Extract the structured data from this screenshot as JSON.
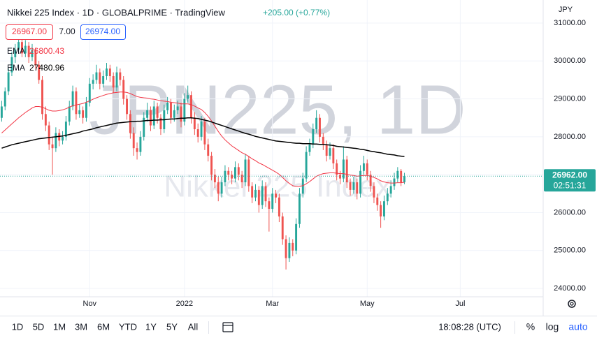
{
  "header": {
    "title": "Nikkei 225 Index · 1D · GLOBALPRIME · TradingView",
    "change": "+205.00 (+0.77%)",
    "bid": "26967.00",
    "spread": "7.00",
    "ask": "26974.00"
  },
  "watermark": {
    "symbol": "JPN225, 1D",
    "name": "Nikkei 225 Index"
  },
  "chart_data": {
    "type": "candlestick",
    "currency": "JPY",
    "up_color": "#26a69a",
    "down_color": "#ef5350",
    "ylim": [
      23780,
      31608
    ],
    "xlim": [
      -0.5,
      160
    ],
    "yticks": [
      {
        "value": 24000,
        "label": "24000.00"
      },
      {
        "value": 25000,
        "label": "25000.00"
      },
      {
        "value": 26000,
        "label": "26000.00"
      },
      {
        "value": 27000,
        "label": "27000.00"
      },
      {
        "value": 28000,
        "label": "28000.00"
      },
      {
        "value": 29000,
        "label": "29000.00"
      },
      {
        "value": 30000,
        "label": "30000.00"
      },
      {
        "value": 31000,
        "label": "31000.00"
      }
    ],
    "xticks": [
      {
        "value": 26,
        "label": "Nov"
      },
      {
        "value": 54,
        "label": "2022"
      },
      {
        "value": 80,
        "label": "Mar"
      },
      {
        "value": 108,
        "label": "May"
      },
      {
        "value": 135.5,
        "label": "Jul"
      }
    ],
    "last_price": {
      "value": 26962,
      "label": "26962.00"
    },
    "countdown": "02:51:31",
    "ohlc": [
      [
        28500,
        28950,
        28400,
        28800
      ],
      [
        28800,
        29300,
        28700,
        29200
      ],
      [
        29200,
        29800,
        29100,
        29700
      ],
      [
        29700,
        30250,
        29600,
        30100
      ],
      [
        30100,
        30450,
        29950,
        30300
      ],
      [
        30300,
        30700,
        30200,
        30500
      ],
      [
        30500,
        30650,
        30100,
        30200
      ],
      [
        30200,
        30550,
        30100,
        30400
      ],
      [
        30400,
        30500,
        29950,
        30100
      ],
      [
        30100,
        30450,
        30000,
        30300
      ],
      [
        30300,
        30350,
        29800,
        29900
      ],
      [
        29900,
        30000,
        29400,
        29500
      ],
      [
        29500,
        29600,
        28450,
        28600
      ],
      [
        28600,
        28800,
        28150,
        28300
      ],
      [
        28300,
        28400,
        27650,
        27800
      ],
      [
        27800,
        28000,
        27000,
        27700
      ],
      [
        27700,
        28250,
        27600,
        28100
      ],
      [
        28100,
        28200,
        27750,
        27900
      ],
      [
        27900,
        28150,
        27800,
        28000
      ],
      [
        28000,
        28550,
        27900,
        28400
      ],
      [
        28400,
        28950,
        28300,
        28800
      ],
      [
        28800,
        29350,
        28700,
        29200
      ],
      [
        29200,
        29300,
        28450,
        28600
      ],
      [
        28600,
        28850,
        28500,
        28700
      ],
      [
        28700,
        28800,
        28350,
        28500
      ],
      [
        28500,
        29050,
        28400,
        28900
      ],
      [
        28900,
        29550,
        28800,
        29400
      ],
      [
        29400,
        29650,
        29250,
        29500
      ],
      [
        29500,
        29900,
        29400,
        29700
      ],
      [
        29700,
        29800,
        29250,
        29400
      ],
      [
        29400,
        29750,
        29300,
        29600
      ],
      [
        29600,
        29950,
        29500,
        29800
      ],
      [
        29800,
        29900,
        29450,
        29600
      ],
      [
        29600,
        29700,
        29150,
        29300
      ],
      [
        29300,
        29850,
        29200,
        29700
      ],
      [
        29700,
        29800,
        29350,
        29500
      ],
      [
        29500,
        29600,
        28850,
        29000
      ],
      [
        29000,
        29100,
        28450,
        28600
      ],
      [
        28600,
        28700,
        27950,
        28100
      ],
      [
        28100,
        28250,
        27500,
        27700
      ],
      [
        27700,
        27850,
        27400,
        27600
      ],
      [
        27600,
        28150,
        27500,
        28000
      ],
      [
        28000,
        28650,
        27900,
        28500
      ],
      [
        28500,
        28900,
        28400,
        28700
      ],
      [
        28700,
        28800,
        28150,
        28300
      ],
      [
        28300,
        28950,
        28200,
        28800
      ],
      [
        28800,
        28900,
        28350,
        28500
      ],
      [
        28500,
        28600,
        28050,
        28200
      ],
      [
        28200,
        28850,
        28100,
        28700
      ],
      [
        28700,
        29050,
        28600,
        28900
      ],
      [
        28900,
        29000,
        28350,
        28500
      ],
      [
        28500,
        28850,
        28400,
        28700
      ],
      [
        28700,
        28950,
        28600,
        28800
      ],
      [
        28800,
        28900,
        28250,
        28400
      ],
      [
        28400,
        29150,
        28300,
        29000
      ],
      [
        29000,
        29350,
        28900,
        29100
      ],
      [
        29100,
        29200,
        28350,
        28500
      ],
      [
        28500,
        28650,
        28050,
        28200
      ],
      [
        28200,
        28350,
        27850,
        28000
      ],
      [
        28000,
        28550,
        27900,
        28400
      ],
      [
        28400,
        28500,
        27650,
        27800
      ],
      [
        27800,
        27950,
        27350,
        27500
      ],
      [
        27500,
        27600,
        26850,
        27000
      ],
      [
        27000,
        27150,
        26650,
        26800
      ],
      [
        26800,
        26950,
        26300,
        26500
      ],
      [
        26500,
        26950,
        26400,
        26800
      ],
      [
        26800,
        27250,
        26700,
        27100
      ],
      [
        27100,
        27200,
        26850,
        27000
      ],
      [
        27000,
        27100,
        26750,
        26900
      ],
      [
        26900,
        27350,
        26800,
        27200
      ],
      [
        27200,
        27300,
        26850,
        27000
      ],
      [
        27000,
        27100,
        26650,
        26800
      ],
      [
        26800,
        27550,
        26700,
        27400
      ],
      [
        27400,
        27500,
        26550,
        26700
      ],
      [
        26700,
        26800,
        26250,
        26400
      ],
      [
        26400,
        26750,
        26300,
        26600
      ],
      [
        26600,
        26700,
        26000,
        26200
      ],
      [
        26200,
        26850,
        26100,
        26700
      ],
      [
        26700,
        26800,
        26150,
        26300
      ],
      [
        26300,
        26400,
        25500,
        26100
      ],
      [
        26100,
        26650,
        26000,
        26500
      ],
      [
        26500,
        26600,
        26250,
        26400
      ],
      [
        26400,
        26500,
        25750,
        25900
      ],
      [
        25900,
        26000,
        25150,
        25300
      ],
      [
        25300,
        25400,
        24500,
        24800
      ],
      [
        24800,
        25350,
        24700,
        25200
      ],
      [
        25200,
        25300,
        24850,
        25000
      ],
      [
        25000,
        25850,
        24900,
        25700
      ],
      [
        25700,
        26650,
        25600,
        26500
      ],
      [
        26500,
        27050,
        26400,
        26900
      ],
      [
        26900,
        27750,
        26800,
        27600
      ],
      [
        27600,
        27950,
        27500,
        27800
      ],
      [
        27800,
        28350,
        27700,
        28200
      ],
      [
        28200,
        28700,
        28100,
        28500
      ],
      [
        28500,
        28600,
        27850,
        28000
      ],
      [
        28000,
        28100,
        27650,
        27800
      ],
      [
        27800,
        27900,
        27350,
        27500
      ],
      [
        27500,
        27850,
        27400,
        27700
      ],
      [
        27700,
        27800,
        27150,
        27300
      ],
      [
        27300,
        27400,
        26850,
        27000
      ],
      [
        27000,
        27100,
        26750,
        26900
      ],
      [
        26900,
        27750,
        26800,
        27400
      ],
      [
        27400,
        27500,
        26650,
        26800
      ],
      [
        26800,
        26900,
        26450,
        26600
      ],
      [
        26600,
        26950,
        26500,
        26800
      ],
      [
        26800,
        26900,
        26350,
        26500
      ],
      [
        26500,
        27250,
        26400,
        27100
      ],
      [
        27100,
        27500,
        27000,
        27300
      ],
      [
        27300,
        27400,
        26850,
        27000
      ],
      [
        27000,
        27100,
        26550,
        26700
      ],
      [
        26700,
        26800,
        26250,
        26400
      ],
      [
        26400,
        26500,
        26050,
        26200
      ],
      [
        26200,
        26300,
        25600,
        25900
      ],
      [
        25900,
        26450,
        25800,
        26300
      ],
      [
        26300,
        26650,
        26200,
        26500
      ],
      [
        26500,
        26850,
        26400,
        26700
      ],
      [
        26700,
        27050,
        26600,
        26900
      ],
      [
        26900,
        27200,
        26800,
        27100
      ],
      [
        27100,
        27150,
        26700,
        26800
      ],
      [
        26800,
        27050,
        26750,
        26962
      ]
    ],
    "series": [
      {
        "name": "EMA",
        "color": "#f23645",
        "last": "26800.43",
        "values": [
          28100,
          28180,
          28260,
          28340,
          28420,
          28500,
          28570,
          28640,
          28700,
          28760,
          28800,
          28800,
          28780,
          28740,
          28700,
          28680,
          28680,
          28690,
          28710,
          28740,
          28780,
          28820,
          28840,
          28860,
          28880,
          28910,
          28950,
          28990,
          29030,
          29060,
          29090,
          29120,
          29140,
          29160,
          29170,
          29180,
          29180,
          29170,
          29140,
          29100,
          29060,
          29040,
          29030,
          29020,
          29000,
          28990,
          28970,
          28950,
          28940,
          28930,
          28910,
          28900,
          28890,
          28870,
          28870,
          28870,
          28850,
          28810,
          28760,
          28720,
          28640,
          28540,
          28420,
          28280,
          28140,
          28020,
          27920,
          27840,
          27760,
          27700,
          27640,
          27580,
          27540,
          27480,
          27420,
          27370,
          27310,
          27270,
          27220,
          27170,
          27120,
          27070,
          27010,
          26930,
          26840,
          26770,
          26710,
          26690,
          26690,
          26710,
          26760,
          26820,
          26890,
          26960,
          27000,
          27030,
          27040,
          27050,
          27050,
          27040,
          27030,
          27030,
          27010,
          26990,
          26980,
          26960,
          26970,
          26980,
          26980,
          26960,
          26930,
          26890,
          26840,
          26810,
          26790,
          26780,
          26780,
          26790,
          26790,
          26800.43
        ]
      },
      {
        "name": "EMA",
        "color": "#000000",
        "last": "27480.96",
        "values": [
          27700,
          27730,
          27760,
          27790,
          27810,
          27830,
          27850,
          27870,
          27890,
          27910,
          27930,
          27950,
          27960,
          27970,
          27980,
          27990,
          28000,
          28010,
          28020,
          28040,
          28060,
          28080,
          28100,
          28120,
          28150,
          28170,
          28190,
          28210,
          28240,
          28260,
          28280,
          28300,
          28320,
          28340,
          28360,
          28370,
          28380,
          28390,
          28400,
          28400,
          28410,
          28410,
          28420,
          28430,
          28430,
          28440,
          28440,
          28450,
          28450,
          28460,
          28470,
          28470,
          28480,
          28490,
          28490,
          28500,
          28500,
          28490,
          28480,
          28460,
          28440,
          28420,
          28390,
          28360,
          28330,
          28300,
          28270,
          28240,
          28210,
          28180,
          28150,
          28120,
          28090,
          28070,
          28040,
          28010,
          27990,
          27970,
          27950,
          27930,
          27910,
          27890,
          27880,
          27870,
          27860,
          27850,
          27840,
          27830,
          27830,
          27820,
          27820,
          27820,
          27810,
          27810,
          27800,
          27800,
          27790,
          27780,
          27770,
          27750,
          27740,
          27730,
          27720,
          27710,
          27700,
          27690,
          27670,
          27660,
          27640,
          27620,
          27610,
          27590,
          27580,
          27560,
          27540,
          27530,
          27520,
          27500,
          27490,
          27480.96
        ]
      }
    ]
  },
  "toolbar": {
    "ranges": [
      "1D",
      "5D",
      "1M",
      "3M",
      "6M",
      "YTD",
      "1Y",
      "5Y",
      "All"
    ],
    "clock": "18:08:28 (UTC)",
    "percent": "%",
    "log": "log",
    "auto": "auto"
  }
}
